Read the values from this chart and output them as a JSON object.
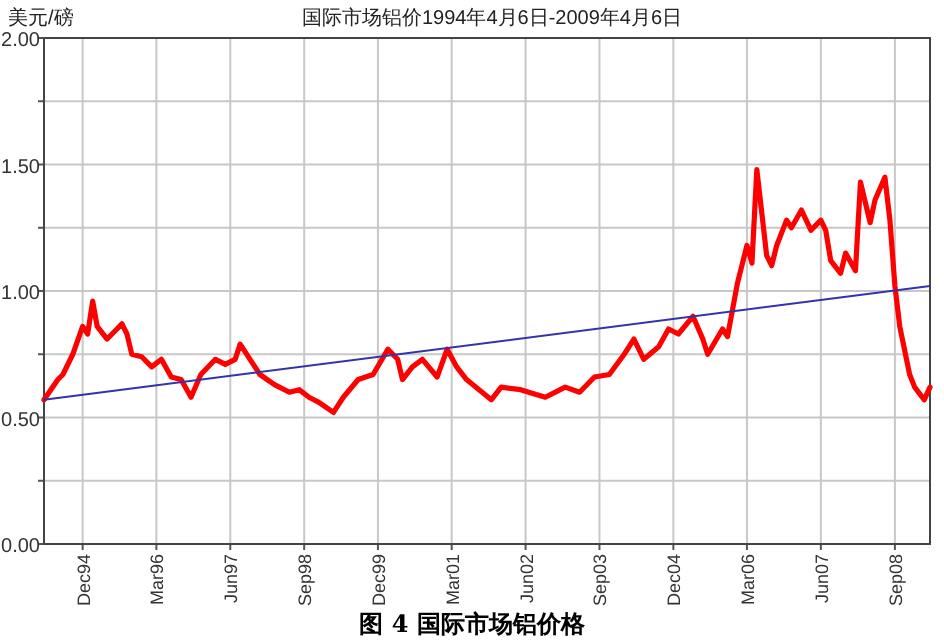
{
  "chart_data": {
    "type": "line",
    "title": "国际市场铝价1994年4月6日-2009年4月6日",
    "ylabel": "美元/磅",
    "annotations": [
      "图 4   国际市场铝价格"
    ],
    "xlim": [
      "1994-04-06",
      "2009-04-06"
    ],
    "xticks": [
      {
        "value": "1994-12-01",
        "label": "Dec94"
      },
      {
        "value": "1996-03-01",
        "label": "Mar96"
      },
      {
        "value": "1997-06-01",
        "label": "Jun97"
      },
      {
        "value": "1998-09-01",
        "label": "Sep98"
      },
      {
        "value": "1999-12-01",
        "label": "Dec99"
      },
      {
        "value": "2001-03-01",
        "label": "Mar01"
      },
      {
        "value": "2002-06-01",
        "label": "Jun02"
      },
      {
        "value": "2003-09-01",
        "label": "Sep03"
      },
      {
        "value": "2004-12-01",
        "label": "Dec04"
      },
      {
        "value": "2006-03-01",
        "label": "Mar06"
      },
      {
        "value": "2007-06-01",
        "label": "Jun07"
      },
      {
        "value": "2008-09-01",
        "label": "Sep08"
      }
    ],
    "ylim": [
      0,
      2
    ],
    "yticks": [
      {
        "value": 0,
        "label": "0.00"
      },
      {
        "value": 0.25,
        "label": null
      },
      {
        "value": 0.5,
        "label": "0.50"
      },
      {
        "value": 0.75,
        "label": null
      },
      {
        "value": 1,
        "label": "1.00"
      },
      {
        "value": 1.25,
        "label": null
      },
      {
        "value": 1.5,
        "label": "1.50"
      },
      {
        "value": 1.75,
        "label": null
      },
      {
        "value": 2,
        "label": "2.00"
      }
    ],
    "grid": true,
    "marker": "none",
    "line_style": "solid",
    "series": [
      {
        "color": "#ff0000",
        "x": [
          "1994-04-06",
          "1994-07",
          "1994-08",
          "1994-10",
          "1994-12",
          "1995-01",
          "1995-02",
          "1995-03",
          "1995-05",
          "1995-06",
          "1995-08",
          "1995-09",
          "1995-10",
          "1995-12",
          "1996-02",
          "1996-04",
          "1996-06",
          "1996-08",
          "1996-10",
          "1996-12",
          "1997-03",
          "1997-05",
          "1997-07",
          "1997-08",
          "1997-10",
          "1997-12",
          "1998-03",
          "1998-06",
          "1998-08",
          "1998-10",
          "1998-12",
          "1999-03",
          "1999-05",
          "1999-08",
          "1999-11",
          "2000-02",
          "2000-04",
          "2000-05",
          "2000-07",
          "2000-09",
          "2000-12",
          "2001-02",
          "2001-04",
          "2001-06",
          "2001-11",
          "2002-01",
          "2002-05",
          "2002-10",
          "2003-02",
          "2003-05",
          "2003-08",
          "2003-11",
          "2004-02",
          "2004-04",
          "2004-06",
          "2004-09",
          "2004-11",
          "2005-01",
          "2005-04",
          "2005-06",
          "2005-07",
          "2005-10",
          "2005-11",
          "2006-01",
          "2006-03",
          "2006-04",
          "2006-05",
          "2006-07",
          "2006-08",
          "2006-09",
          "2006-11",
          "2006-12",
          "2007-02",
          "2007-04",
          "2007-06",
          "2007-07",
          "2007-08",
          "2007-10",
          "2007-11",
          "2008-01",
          "2008-02",
          "2008-04",
          "2008-05",
          "2008-07",
          "2008-08",
          "2008-09",
          "2008-10",
          "2008-12",
          "2009-01",
          "2009-03",
          "2009-04-06"
        ],
        "values": [
          0.57,
          0.65,
          0.67,
          0.75,
          0.86,
          0.83,
          0.96,
          0.86,
          0.81,
          0.83,
          0.87,
          0.83,
          0.75,
          0.74,
          0.7,
          0.73,
          0.66,
          0.65,
          0.58,
          0.67,
          0.73,
          0.71,
          0.73,
          0.79,
          0.73,
          0.67,
          0.63,
          0.6,
          0.61,
          0.58,
          0.56,
          0.52,
          0.58,
          0.65,
          0.67,
          0.77,
          0.73,
          0.65,
          0.7,
          0.73,
          0.66,
          0.77,
          0.7,
          0.65,
          0.57,
          0.62,
          0.61,
          0.58,
          0.62,
          0.6,
          0.66,
          0.67,
          0.75,
          0.81,
          0.73,
          0.78,
          0.85,
          0.83,
          0.9,
          0.81,
          0.75,
          0.85,
          0.82,
          1.03,
          1.18,
          1.11,
          1.48,
          1.14,
          1.1,
          1.18,
          1.28,
          1.25,
          1.32,
          1.24,
          1.28,
          1.24,
          1.12,
          1.07,
          1.15,
          1.08,
          1.43,
          1.27,
          1.36,
          1.45,
          1.28,
          1.02,
          0.86,
          0.67,
          0.62,
          0.57,
          0.62
        ]
      },
      {
        "type": "line",
        "color": "#3333aa",
        "x": [
          "1994-04-06",
          "2009-04-06"
        ],
        "values": [
          0.57,
          1.02
        ]
      }
    ]
  }
}
